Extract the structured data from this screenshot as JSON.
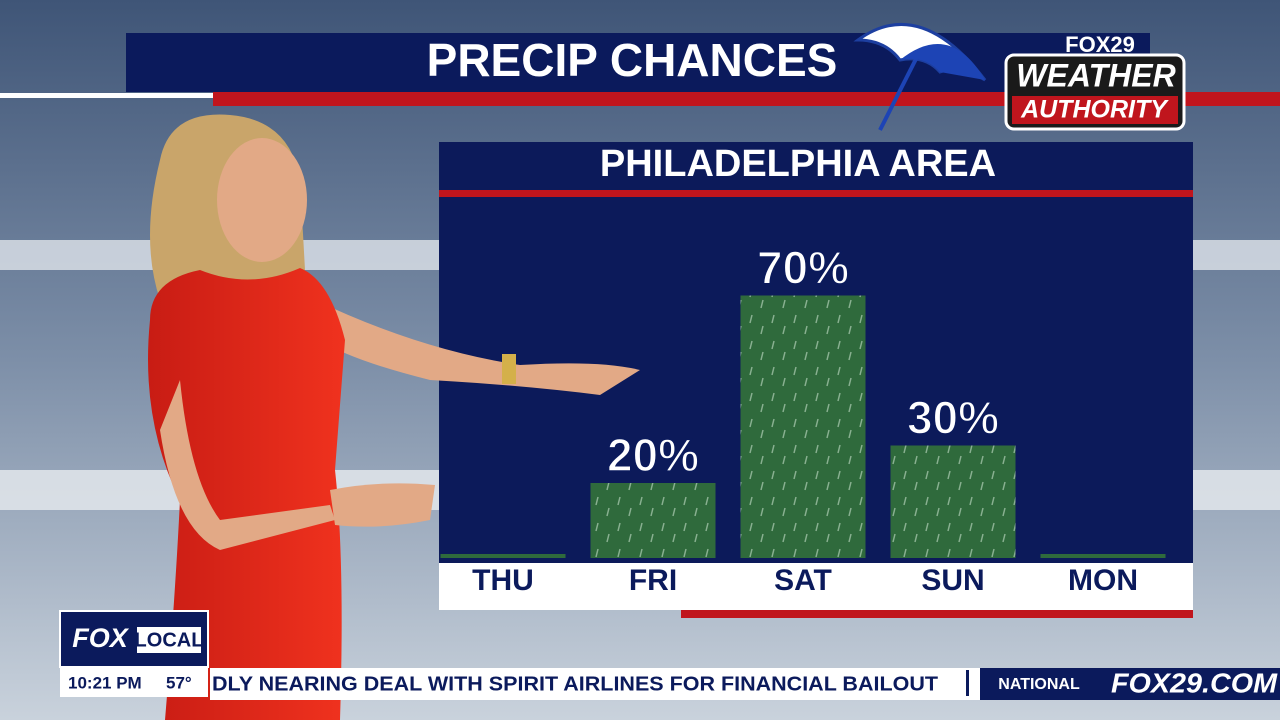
{
  "header": {
    "title": "PRECIP CHANCES",
    "brand_top": "FOX29",
    "brand_mid": "WEATHER",
    "brand_bottom": "AUTHORITY"
  },
  "chart_data": {
    "type": "bar",
    "title": "PHILADELPHIA AREA",
    "categories": [
      "THU",
      "FRI",
      "SAT",
      "SUN",
      "MON"
    ],
    "values": [
      0,
      20,
      70,
      30,
      0
    ],
    "value_labels": [
      null,
      "20%",
      "70%",
      "30%",
      null
    ],
    "color": "#2f6a3c"
  },
  "footer": {
    "station_a": "FOX",
    "station_b": "LOCAL",
    "time": "10:21 PM",
    "temperature": "57°",
    "ticker": "DLY NEARING DEAL WITH SPIRIT AIRLINES FOR FINANCIAL BAILOUT",
    "section": "NATIONAL",
    "site": "FOX29.COM"
  }
}
